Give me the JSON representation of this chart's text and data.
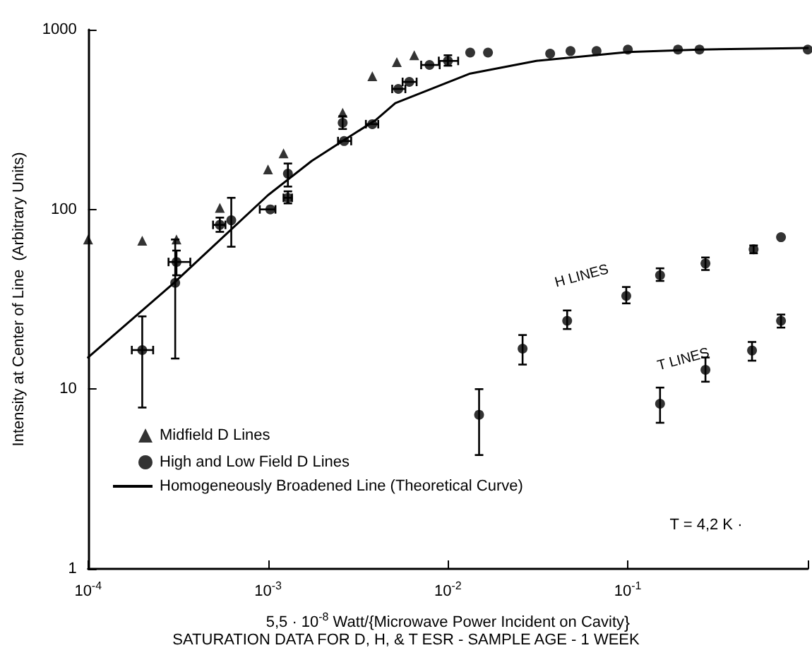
{
  "chart_data": {
    "type": "scatter",
    "title": "SATURATION DATA FOR D, H, & T ESR - SAMPLE AGE - 1 WEEK",
    "xlabel": "5,5 · 10$^{-8}$ Watt/{Microwave Power Incident on Cavity}",
    "ylabel": "Intensity at Center of Line  (Arbitrary Units)",
    "log": "xy",
    "xlim": [
      0.0001,
      1
    ],
    "ylim": [
      1,
      1000
    ],
    "xticks": [
      {
        "value": 0.0001,
        "label": "10$^{-4}$"
      },
      {
        "value": 0.001,
        "label": "10$^{-3}$"
      },
      {
        "value": 0.01,
        "label": "10$^{-2}$"
      },
      {
        "value": 0.1,
        "label": "10$^{-1}$"
      },
      {
        "value": 1,
        "label": null
      }
    ],
    "yticks": [
      1,
      10,
      100,
      1000
    ],
    "grid": false,
    "legend": "left",
    "annotations": [
      "H LINES",
      "T LINES",
      "T = 4,2 K ·"
    ],
    "series": [
      {
        "name": "Midfield D Lines",
        "marker": "triangle",
        "color": "#000000",
        "x": [
          0.0001,
          0.0002,
          0.00031,
          0.00054,
          0.001,
          0.00122,
          0.0026,
          0.0038,
          0.0052,
          0.0065
        ],
        "values": [
          68,
          67,
          68,
          102,
          167,
          205,
          345,
          550,
          660,
          720
        ]
      },
      {
        "name": "High and Low Field D Lines",
        "marker": "circle",
        "color": "#000000",
        "x": [
          0.0002,
          0.000305,
          0.00031,
          0.00054,
          0.000625,
          0.00103,
          0.00129,
          0.00129,
          0.00265,
          0.0026,
          0.0038,
          0.0053,
          0.0061,
          0.0079,
          0.01,
          0.0133,
          0.0167,
          0.037,
          0.048,
          0.067,
          0.1,
          0.19,
          0.25,
          1
        ],
        "values": [
          16.5,
          39,
          51,
          82,
          87,
          100,
          158,
          116,
          240,
          303,
          298,
          468,
          512,
          636,
          670,
          745,
          745,
          735,
          760,
          760,
          775,
          775,
          775,
          775
        ],
        "errors": [
          [
            7.9,
            25.4
          ],
          [
            14.8,
            68
          ],
          [
            43,
            59
          ],
          [
            75,
            90
          ],
          [
            62,
            116
          ],
          null,
          [
            134,
            180
          ],
          [
            108,
            126
          ],
          null,
          [
            280,
            330
          ],
          null,
          null,
          null,
          null,
          [
            630,
            720
          ],
          null,
          null,
          null,
          null,
          null,
          null,
          null,
          null,
          null
        ],
        "xerrors": [
          [
            0.000175,
            0.00023
          ],
          null,
          [
            0.00028,
            0.00037
          ],
          [
            0.000495,
            0.00058
          ],
          null,
          [
            0.0009,
            0.0011
          ],
          null,
          [
            0.00122,
            0.00136
          ],
          [
            0.00245,
            0.0029
          ],
          null,
          [
            0.0035,
            0.0041
          ],
          [
            0.0049,
            0.0058
          ],
          [
            0.0056,
            0.0067
          ],
          [
            0.0071,
            0.009
          ],
          [
            0.0089,
            0.0114
          ],
          null,
          null,
          null,
          null,
          null,
          null,
          null,
          null,
          null
        ]
      },
      {
        "name": "Homogeneously Broadened Line (Theoretical Curve)",
        "type": "line",
        "marker": "none",
        "line_style": "solid",
        "color": "#000000",
        "x": [
          0.0001,
          0.0003,
          0.001,
          0.00175,
          0.0026,
          0.004,
          0.0051,
          0.0133,
          0.031,
          0.1,
          0.25,
          1
        ],
        "values": [
          15,
          39,
          120,
          186,
          240,
          316,
          390,
          570,
          670,
          750,
          775,
          790
        ]
      },
      {
        "marker": "circle",
        "color": "#000000",
        "x": [
          0.026,
          0.046,
          0.098,
          0.151,
          0.27,
          0.5,
          0.71
        ],
        "values": [
          16.8,
          24,
          33,
          43,
          50,
          60,
          70
        ],
        "errors": [
          [
            13.7,
            20
          ],
          [
            21.6,
            27.4
          ],
          [
            30,
            37
          ],
          [
            40,
            47
          ],
          [
            46,
            54
          ],
          [
            57,
            63
          ],
          null
        ]
      },
      {
        "marker": "circle",
        "color": "#000000",
        "x": [
          0.0149,
          0.151,
          0.27,
          0.49,
          0.71
        ],
        "values": [
          7.2,
          8.3,
          12.8,
          16.4,
          24
        ],
        "errors": [
          [
            4.3,
            10
          ],
          [
            6.5,
            10.2
          ],
          [
            11,
            15
          ],
          [
            14.4,
            18.3
          ],
          [
            22,
            26
          ]
        ]
      }
    ]
  }
}
